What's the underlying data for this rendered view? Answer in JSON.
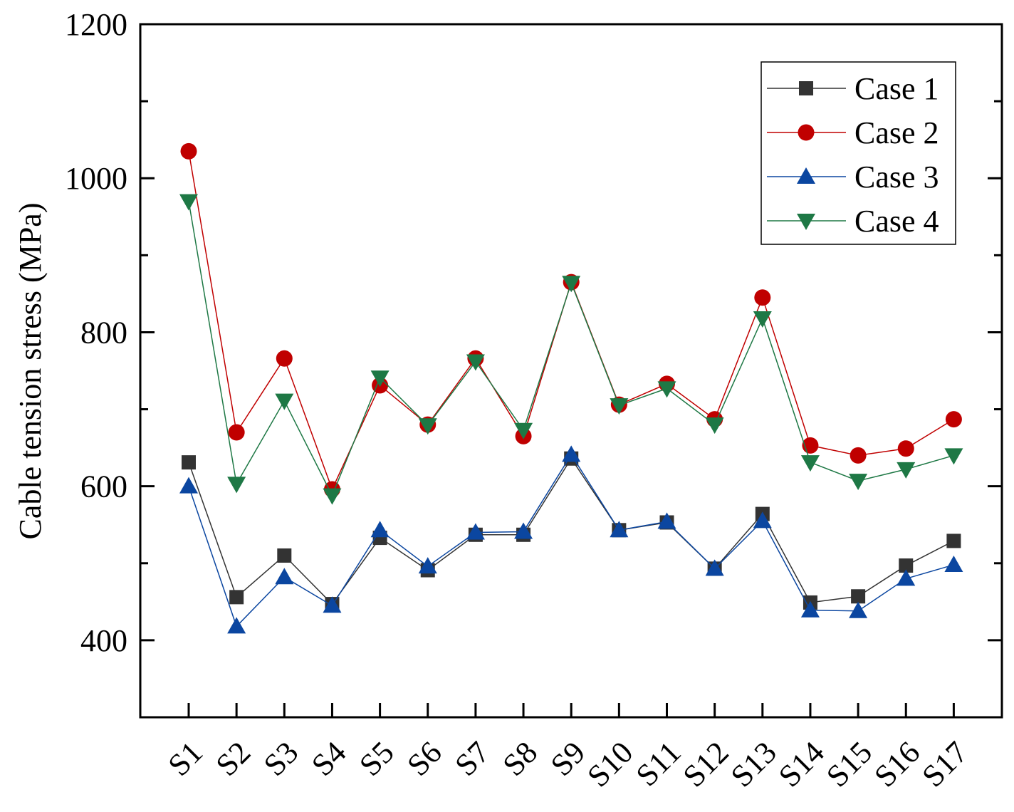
{
  "chart_data": {
    "type": "line",
    "title": "",
    "xlabel": "",
    "ylabel": "Cable tension stress (MPa)",
    "ylim": [
      300,
      1200
    ],
    "yticks": [
      400,
      600,
      800,
      1000,
      1200
    ],
    "grid": false,
    "legend_position": "top-right",
    "categories": [
      "S1",
      "S2",
      "S3",
      "S4",
      "S5",
      "S6",
      "S7",
      "S8",
      "S9",
      "S10",
      "S11",
      "S12",
      "S13",
      "S14",
      "S15",
      "S16",
      "S17"
    ],
    "series": [
      {
        "name": "Case 1",
        "marker": "square",
        "color": "#333333",
        "values": [
          631,
          456,
          510,
          447,
          533,
          491,
          537,
          537,
          636,
          543,
          553,
          493,
          564,
          449,
          457,
          497,
          529
        ]
      },
      {
        "name": "Case 2",
        "marker": "circle",
        "color": "#c00000",
        "values": [
          1035,
          670,
          766,
          596,
          731,
          680,
          766,
          665,
          865,
          706,
          733,
          687,
          845,
          653,
          640,
          649,
          687
        ]
      },
      {
        "name": "Case 3",
        "marker": "triangle-up",
        "color": "#0b46a0",
        "values": [
          600,
          418,
          482,
          445,
          543,
          496,
          540,
          541,
          641,
          543,
          554,
          493,
          555,
          439,
          438,
          480,
          498
        ]
      },
      {
        "name": "Case 4",
        "marker": "triangle-down",
        "color": "#1e7845",
        "values": [
          970,
          603,
          711,
          588,
          741,
          679,
          762,
          673,
          864,
          705,
          727,
          680,
          818,
          631,
          607,
          622,
          640
        ]
      }
    ]
  }
}
